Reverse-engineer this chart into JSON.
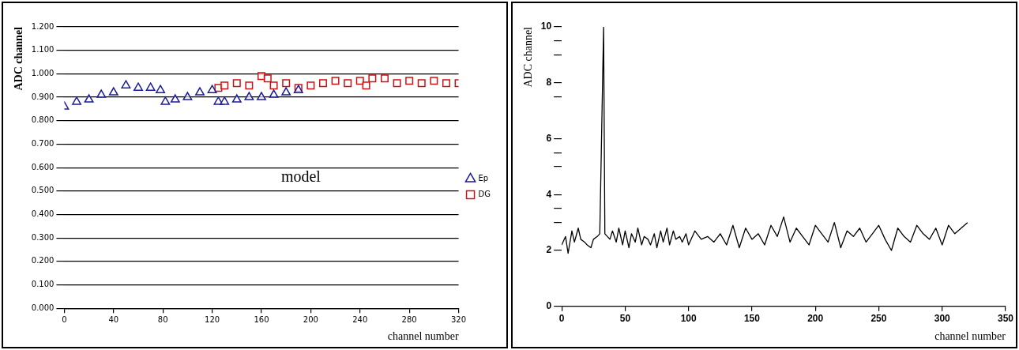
{
  "chart_data": [
    {
      "type": "scatter",
      "xlabel": "channel number",
      "ylabel": "ADC channel",
      "annotations": [
        "model"
      ],
      "xlim": [
        0,
        320
      ],
      "xticks": [
        0,
        40,
        80,
        120,
        160,
        200,
        240,
        280,
        320
      ],
      "ylim": [
        0,
        1.2
      ],
      "yticks": [
        {
          "value": 0,
          "label": "0.000"
        },
        {
          "value": 0.1,
          "label": "0.100"
        },
        {
          "value": 0.2,
          "label": "0.200"
        },
        {
          "value": 0.3,
          "label": "0.300"
        },
        {
          "value": 0.4,
          "label": "0.400"
        },
        {
          "value": 0.5,
          "label": "0.500"
        },
        {
          "value": 0.6,
          "label": "0.600"
        },
        {
          "value": 0.7,
          "label": "0.700"
        },
        {
          "value": 0.8,
          "label": "0.800"
        },
        {
          "value": 0.9,
          "label": "0.900"
        },
        {
          "value": 1.0,
          "label": "1.000"
        },
        {
          "value": 1.1,
          "label": "1.100"
        },
        {
          "value": 1.2,
          "label": "1.200"
        }
      ],
      "grid": "y",
      "legend": "right",
      "series": [
        {
          "name": "Ep",
          "color": "#1a1aa0",
          "marker": "triangle",
          "x": [
            0,
            10,
            20,
            30,
            40,
            50,
            60,
            70,
            78,
            82,
            90,
            100,
            110,
            120,
            125,
            130,
            140,
            150,
            160,
            170,
            180,
            190
          ],
          "values": [
            0.86,
            0.88,
            0.89,
            0.91,
            0.92,
            0.95,
            0.94,
            0.94,
            0.93,
            0.88,
            0.89,
            0.9,
            0.92,
            0.93,
            0.88,
            0.88,
            0.89,
            0.9,
            0.9,
            0.91,
            0.92,
            0.93
          ]
        },
        {
          "name": "DG",
          "color": "#d01010",
          "marker": "square",
          "x": [
            125,
            130,
            140,
            150,
            160,
            165,
            170,
            180,
            190,
            200,
            210,
            220,
            230,
            240,
            245,
            250,
            260,
            270,
            280,
            290,
            300,
            310,
            320
          ],
          "values": [
            0.94,
            0.95,
            0.96,
            0.95,
            0.99,
            0.98,
            0.95,
            0.96,
            0.94,
            0.95,
            0.96,
            0.97,
            0.96,
            0.97,
            0.95,
            0.98,
            0.98,
            0.96,
            0.97,
            0.96,
            0.97,
            0.96,
            0.96
          ]
        }
      ]
    },
    {
      "type": "line",
      "xlabel": "channel number",
      "ylabel": "ADC channel",
      "xlim": [
        0,
        350
      ],
      "xticks": [
        0,
        50,
        100,
        150,
        200,
        250,
        300,
        350
      ],
      "ylim": [
        0,
        10
      ],
      "yticks": [
        0,
        2,
        {
          "value": 3,
          "label": null
        },
        {
          "value": 3.5,
          "label": null
        },
        4,
        {
          "value": 5,
          "label": null
        },
        {
          "value": 5.5,
          "label": null
        },
        6,
        {
          "value": 7.5,
          "label": null
        },
        8,
        {
          "value": 9,
          "label": null
        },
        {
          "value": 9.5,
          "label": null
        },
        10
      ],
      "grid": false,
      "legend": false,
      "series": [
        {
          "color": "#000000",
          "marker": "none",
          "x": [
            0,
            3,
            5,
            8,
            10,
            13,
            15,
            18,
            20,
            23,
            25,
            28,
            30,
            33,
            34,
            38,
            40,
            43,
            45,
            48,
            50,
            53,
            55,
            58,
            60,
            63,
            65,
            68,
            70,
            73,
            75,
            78,
            80,
            83,
            85,
            88,
            90,
            93,
            95,
            98,
            100,
            105,
            110,
            115,
            120,
            125,
            130,
            135,
            140,
            145,
            150,
            155,
            160,
            165,
            170,
            175,
            180,
            185,
            190,
            195,
            200,
            205,
            210,
            215,
            220,
            225,
            230,
            235,
            240,
            245,
            250,
            255,
            260,
            265,
            270,
            275,
            280,
            285,
            290,
            295,
            300,
            305,
            310,
            315,
            320
          ],
          "values": [
            2.2,
            2.5,
            1.9,
            2.7,
            2.3,
            2.8,
            2.4,
            2.3,
            2.2,
            2.1,
            2.4,
            2.5,
            2.6,
            10,
            2.6,
            2.4,
            2.7,
            2.3,
            2.8,
            2.2,
            2.7,
            2.1,
            2.6,
            2.3,
            2.8,
            2.2,
            2.5,
            2.4,
            2.2,
            2.6,
            2.1,
            2.7,
            2.3,
            2.8,
            2.2,
            2.7,
            2.4,
            2.5,
            2.3,
            2.6,
            2.2,
            2.7,
            2.4,
            2.5,
            2.3,
            2.6,
            2.2,
            2.9,
            2.1,
            2.8,
            2.4,
            2.6,
            2.2,
            2.9,
            2.5,
            3.2,
            2.3,
            2.8,
            2.5,
            2.2,
            2.9,
            2.6,
            2.3,
            3.0,
            2.1,
            2.7,
            2.5,
            2.8,
            2.3,
            2.6,
            2.9,
            2.4,
            2.0,
            2.8,
            2.5,
            2.3,
            2.9,
            2.6,
            2.4,
            2.8,
            2.2,
            2.9,
            2.6,
            2.8,
            3.0
          ]
        }
      ]
    }
  ]
}
